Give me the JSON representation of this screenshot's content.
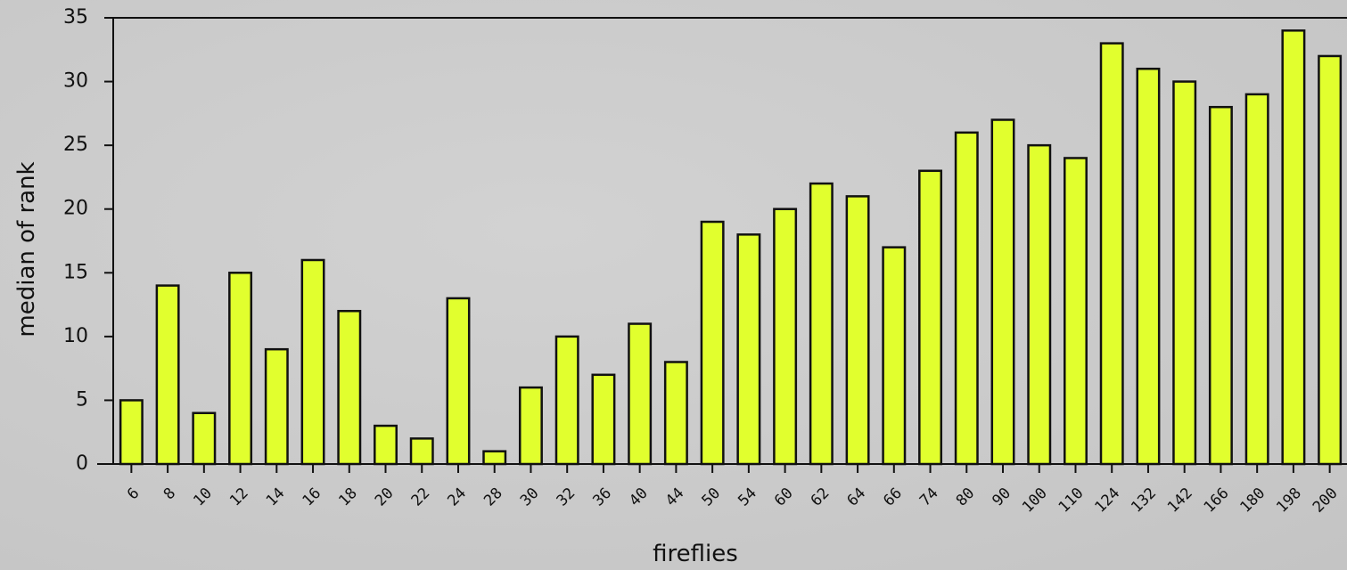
{
  "chart_data": {
    "type": "bar",
    "xlabel": "fireflies",
    "ylabel": "median of rank",
    "categories": [
      "6",
      "8",
      "10",
      "12",
      "14",
      "16",
      "18",
      "20",
      "22",
      "24",
      "28",
      "30",
      "32",
      "36",
      "40",
      "44",
      "50",
      "54",
      "60",
      "62",
      "64",
      "66",
      "74",
      "80",
      "90",
      "100",
      "110",
      "124",
      "132",
      "142",
      "166",
      "180",
      "198",
      "200"
    ],
    "values": [
      5,
      14,
      4,
      15,
      9,
      16,
      12,
      3,
      2,
      13,
      1,
      6,
      10,
      7,
      11,
      8,
      19,
      18,
      20,
      22,
      21,
      17,
      23,
      26,
      27,
      25,
      24,
      33,
      31,
      30,
      28,
      29,
      34,
      32
    ],
    "color": "#e1ff2e",
    "ylim": [
      0,
      35
    ],
    "yticks": [
      0,
      5,
      10,
      15,
      20,
      25,
      30,
      35
    ]
  }
}
